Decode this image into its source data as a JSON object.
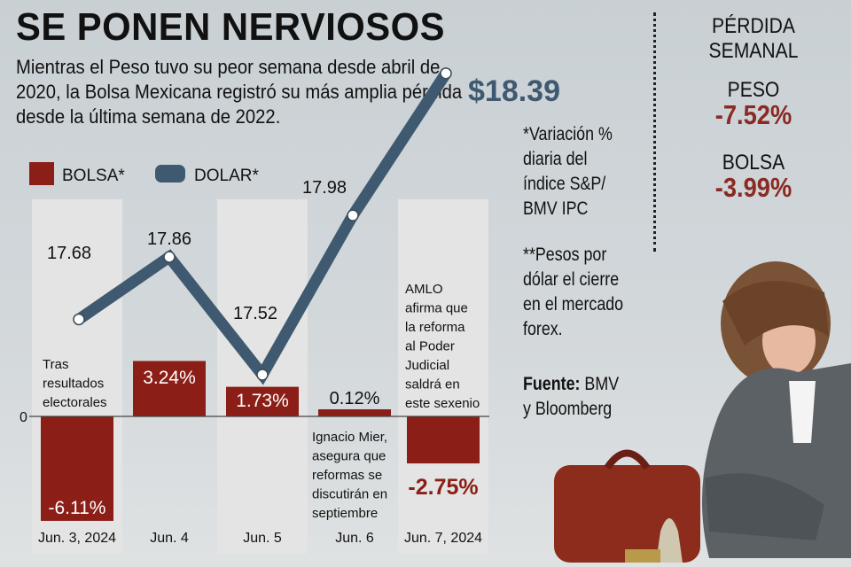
{
  "header": {
    "title": "SE PONEN NERVIOSOS",
    "subtitle": "Mientras el Peso tuvo su peor semana desde abril de 2020, la Bolsa Mexicana registró su más amplia pérdida desde la última semana de 2022."
  },
  "chart_data": {
    "type": "bar",
    "categories": [
      "Jun. 3, 2024",
      "Jun. 4",
      "Jun. 5",
      "Jun. 6",
      "Jun. 7, 2024"
    ],
    "series": [
      {
        "name": "BOLSA*",
        "type": "bar",
        "color": "#8b1e16",
        "values": [
          -6.11,
          3.24,
          1.73,
          0.12,
          -2.75
        ],
        "labels": [
          "-6.11%",
          "3.24%",
          "1.73%",
          "0.12%",
          "-2.75%"
        ]
      },
      {
        "name": "DOLAR*",
        "type": "line",
        "color": "#3f5a70",
        "values": [
          17.68,
          17.86,
          17.52,
          17.98,
          18.39
        ],
        "labels": [
          "17.68",
          "17.86",
          "17.52",
          "17.98",
          "$18.39"
        ]
      }
    ],
    "zero_label": "0",
    "annotations": [
      "Tras resultados electorales",
      "Ignacio Mier, asegura que reformas se discutirán en septiembre",
      "AMLO afirma que la reforma al Poder Judicial saldrá en este sexenio"
    ]
  },
  "notes": {
    "note1": "*Variación % diaria del índice S&P/ BMV IPC",
    "note2": "**Pesos por dólar el cierre en el mercado forex.",
    "source_label": "Fuente:",
    "source_text": " BMV y Bloomberg"
  },
  "summary": {
    "title_line1": "PÉRDIDA",
    "title_line2": "SEMANAL",
    "peso_label": "PESO",
    "peso_value": "-7.52%",
    "bolsa_label": "BOLSA",
    "bolsa_value": "-3.99%"
  }
}
